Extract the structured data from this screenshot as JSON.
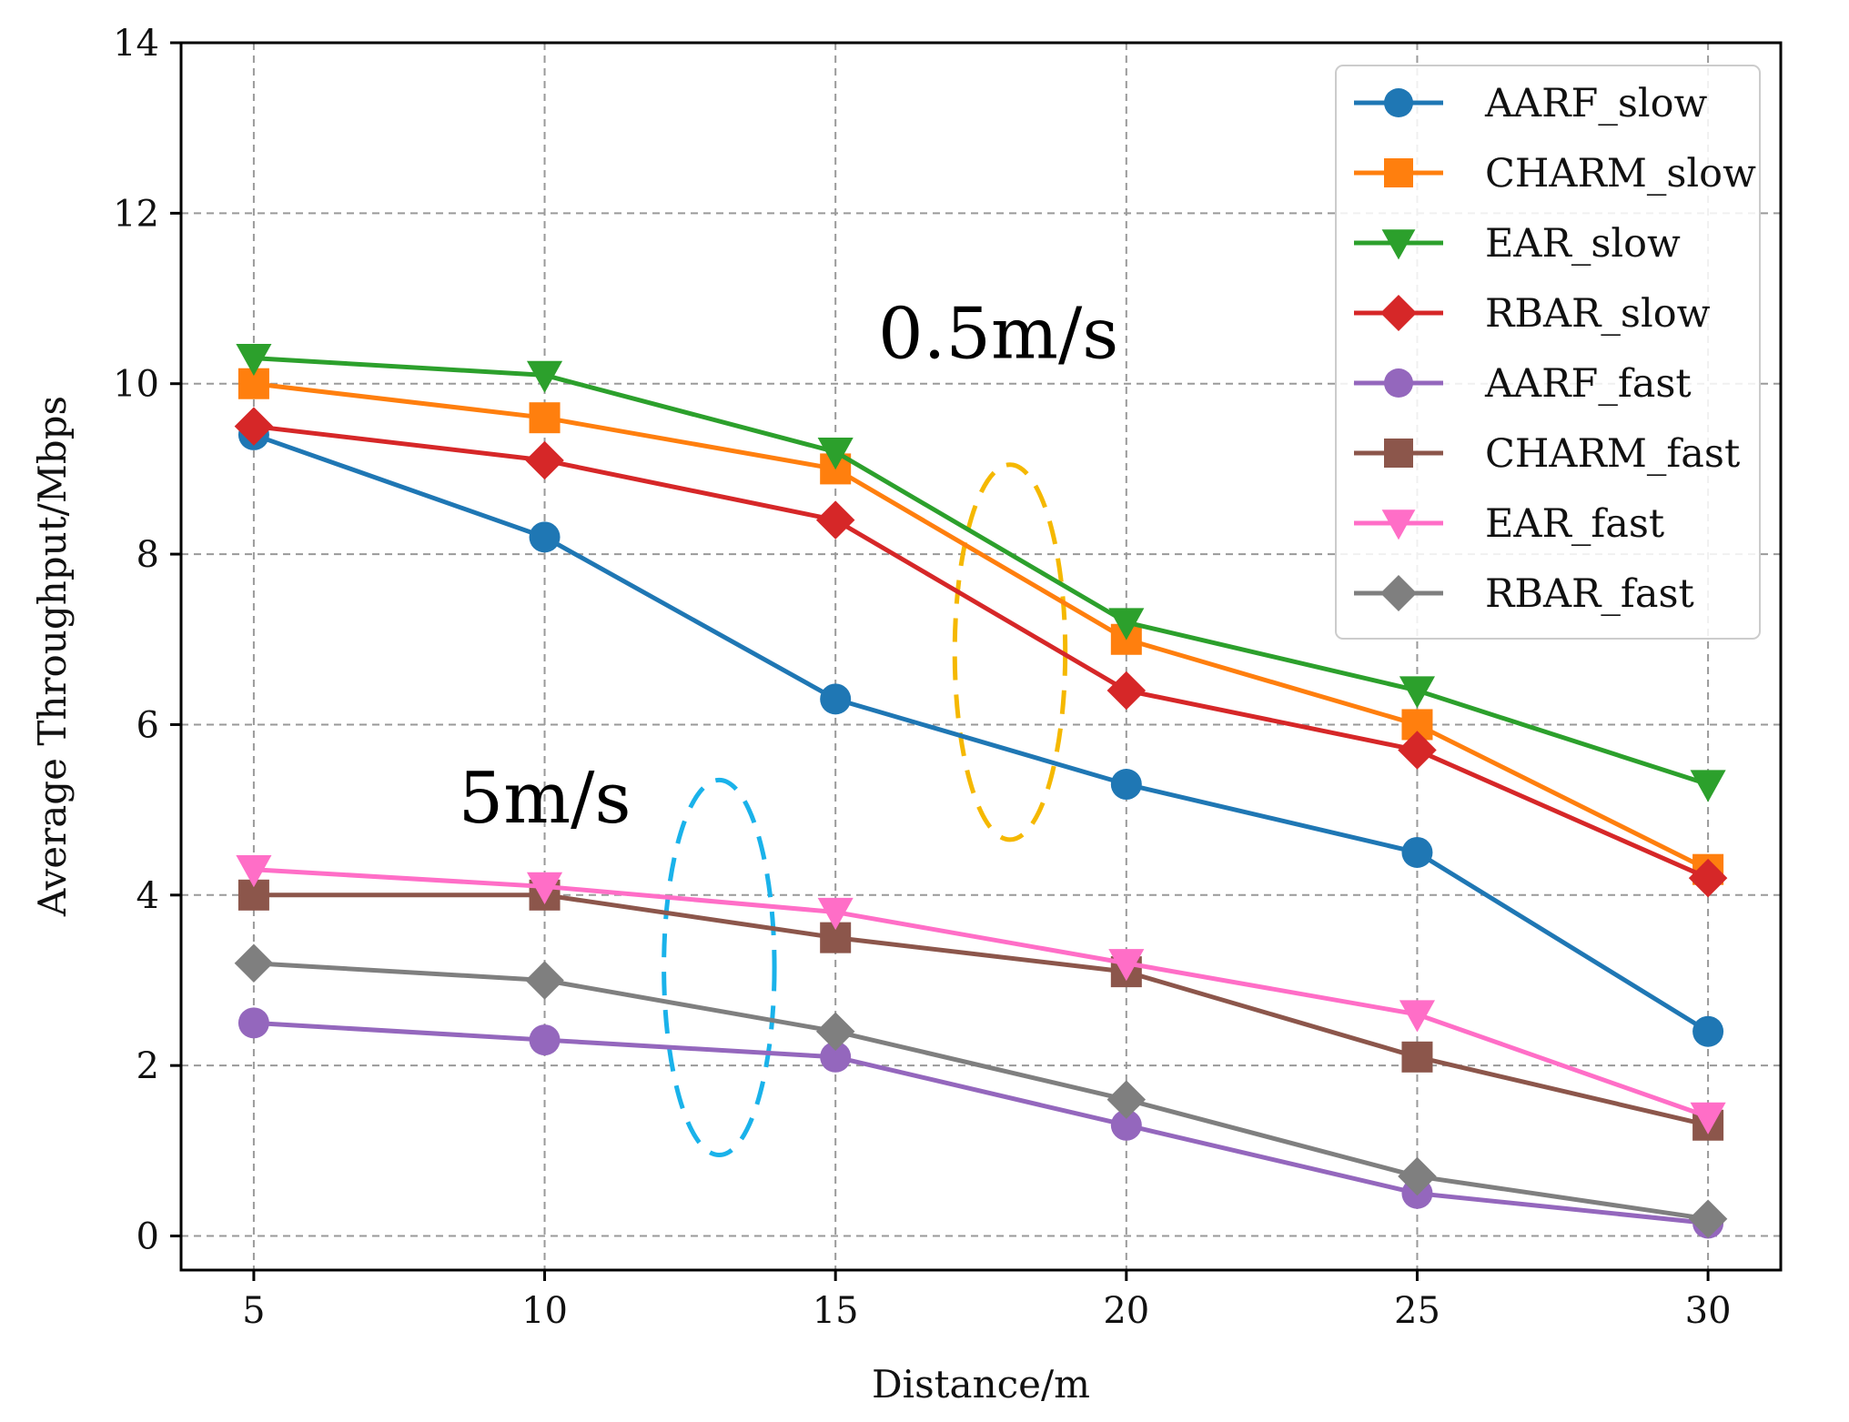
{
  "chart_data": {
    "type": "line",
    "title": "",
    "xlabel": "Distance/m",
    "ylabel": "Average Throughput/Mbps",
    "x": [
      5,
      10,
      15,
      20,
      25,
      30
    ],
    "xlim": [
      3.75,
      31.25
    ],
    "ylim": [
      -0.4,
      14
    ],
    "xticks": [
      "5",
      "10",
      "15",
      "20",
      "25",
      "30"
    ],
    "yticks": [
      "0",
      "2",
      "4",
      "6",
      "8",
      "10",
      "12",
      "14"
    ],
    "grid": true,
    "legend_position": "top-right",
    "series": [
      {
        "name": "AARF_slow",
        "color": "#1f77b4",
        "marker": "circle",
        "values": [
          9.4,
          8.2,
          6.3,
          5.3,
          4.5,
          2.4
        ]
      },
      {
        "name": "CHARM_slow",
        "color": "#ff7f0e",
        "marker": "square",
        "values": [
          10.0,
          9.6,
          9.0,
          7.0,
          6.0,
          4.3
        ]
      },
      {
        "name": "EAR_slow",
        "color": "#2ca02c",
        "marker": "triangle-down",
        "values": [
          10.3,
          10.1,
          9.2,
          7.2,
          6.4,
          5.3
        ]
      },
      {
        "name": "RBAR_slow",
        "color": "#d62728",
        "marker": "diamond",
        "values": [
          9.5,
          9.1,
          8.4,
          6.4,
          5.7,
          4.2
        ]
      },
      {
        "name": "AARF_fast",
        "color": "#9467bd",
        "marker": "circle",
        "values": [
          2.5,
          2.3,
          2.1,
          1.3,
          0.5,
          0.15
        ]
      },
      {
        "name": "CHARM_fast",
        "color": "#8c564b",
        "marker": "square",
        "values": [
          4.0,
          4.0,
          3.5,
          3.1,
          2.1,
          1.3
        ]
      },
      {
        "name": "EAR_fast",
        "color": "#ff6ec7",
        "marker": "triangle-down",
        "values": [
          4.3,
          4.1,
          3.8,
          3.2,
          2.6,
          1.4
        ]
      },
      {
        "name": "RBAR_fast",
        "color": "#7f7f7f",
        "marker": "diamond",
        "values": [
          3.2,
          3.0,
          2.4,
          1.6,
          0.7,
          0.2
        ]
      }
    ],
    "annotations": [
      {
        "text": "0.5m/s",
        "x": 17.8,
        "y": 10.3,
        "ellipse_color": "#f5b800",
        "ellipse_center": [
          18.0,
          6.85
        ],
        "ellipse_radii": [
          0.95,
          2.2
        ]
      },
      {
        "text": "5m/s",
        "x": 10.0,
        "y": 4.85,
        "ellipse_color": "#1ab2ea",
        "ellipse_center": [
          13.0,
          3.15
        ],
        "ellipse_radii": [
          0.95,
          2.2
        ]
      }
    ]
  }
}
